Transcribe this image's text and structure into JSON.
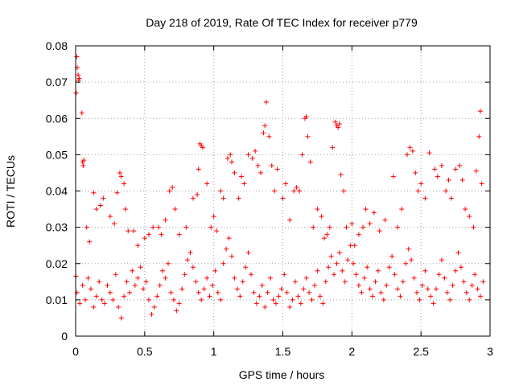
{
  "chart_data": {
    "type": "scatter",
    "title": "Day 218 of 2019, Rate Of TEC Index for receiver p779",
    "xlabel": "GPS time / hours",
    "ylabel": "ROTI / TECUs",
    "xlim": [
      0,
      3
    ],
    "ylim": [
      0,
      0.08
    ],
    "xticks": [
      0,
      0.5,
      1,
      1.5,
      2,
      2.5,
      3
    ],
    "xtick_labels": [
      "0",
      "0.5",
      "1",
      "1.5",
      "2",
      "2.5",
      "3"
    ],
    "yticks": [
      0,
      0.01,
      0.02,
      0.03,
      0.04,
      0.05,
      0.06,
      0.07,
      0.08
    ],
    "ytick_labels": [
      "0",
      "0.01",
      "0.02",
      "0.03",
      "0.04",
      "0.05",
      "0.06",
      "0.07",
      "0.08"
    ],
    "grid": true,
    "marker": "+",
    "color": "#ff0000",
    "series": [
      {
        "name": "p779",
        "points": [
          [
            0.002,
            0.0165
          ],
          [
            0.004,
            0.067
          ],
          [
            0.008,
            0.077
          ],
          [
            0.012,
            0.074
          ],
          [
            0.018,
            0.072
          ],
          [
            0.022,
            0.0705
          ],
          [
            0.026,
            0.071
          ],
          [
            0.045,
            0.0615
          ],
          [
            0.05,
            0.048
          ],
          [
            0.055,
            0.047
          ],
          [
            0.06,
            0.0485
          ],
          [
            0.08,
            0.03
          ],
          [
            0.1,
            0.026
          ],
          [
            0.13,
            0.0395
          ],
          [
            0.15,
            0.035
          ],
          [
            0.18,
            0.036
          ],
          [
            0.2,
            0.038
          ],
          [
            0.25,
            0.033
          ],
          [
            0.28,
            0.031
          ],
          [
            0.3,
            0.0395
          ],
          [
            0.32,
            0.045
          ],
          [
            0.33,
            0.044
          ],
          [
            0.35,
            0.042
          ],
          [
            0.36,
            0.035
          ],
          [
            0.38,
            0.029
          ],
          [
            0.42,
            0.029
          ],
          [
            0.45,
            0.025
          ],
          [
            0.5,
            0.027
          ],
          [
            0.53,
            0.028
          ],
          [
            0.56,
            0.03
          ],
          [
            0.6,
            0.03
          ],
          [
            0.62,
            0.028
          ],
          [
            0.65,
            0.032
          ],
          [
            0.68,
            0.04
          ],
          [
            0.7,
            0.041
          ],
          [
            0.72,
            0.035
          ],
          [
            0.75,
            0.028
          ],
          [
            0.8,
            0.03
          ],
          [
            0.85,
            0.038
          ],
          [
            0.88,
            0.039
          ],
          [
            0.89,
            0.046
          ],
          [
            0.9,
            0.053
          ],
          [
            0.91,
            0.0525
          ],
          [
            0.92,
            0.052
          ],
          [
            0.95,
            0.042
          ],
          [
            0.98,
            0.03
          ],
          [
            1.0,
            0.033
          ],
          [
            1.02,
            0.029
          ],
          [
            1.05,
            0.04
          ],
          [
            1.07,
            0.038
          ],
          [
            1.1,
            0.049
          ],
          [
            1.12,
            0.05
          ],
          [
            1.13,
            0.048
          ],
          [
            1.15,
            0.045
          ],
          [
            1.18,
            0.038
          ],
          [
            1.2,
            0.044
          ],
          [
            1.22,
            0.042
          ],
          [
            1.25,
            0.05
          ],
          [
            1.28,
            0.049
          ],
          [
            1.3,
            0.051
          ],
          [
            1.32,
            0.047
          ],
          [
            1.34,
            0.045
          ],
          [
            1.36,
            0.056
          ],
          [
            1.37,
            0.058
          ],
          [
            1.38,
            0.0645
          ],
          [
            1.4,
            0.055
          ],
          [
            1.42,
            0.047
          ],
          [
            1.44,
            0.04
          ],
          [
            1.46,
            0.046
          ],
          [
            1.5,
            0.038
          ],
          [
            1.52,
            0.042
          ],
          [
            1.55,
            0.032
          ],
          [
            1.58,
            0.04
          ],
          [
            1.6,
            0.041
          ],
          [
            1.62,
            0.04
          ],
          [
            1.64,
            0.05
          ],
          [
            1.66,
            0.06
          ],
          [
            1.67,
            0.0605
          ],
          [
            1.68,
            0.055
          ],
          [
            1.7,
            0.048
          ],
          [
            1.72,
            0.03
          ],
          [
            1.75,
            0.035
          ],
          [
            1.78,
            0.033
          ],
          [
            1.8,
            0.027
          ],
          [
            1.82,
            0.028
          ],
          [
            1.84,
            0.03
          ],
          [
            1.86,
            0.052
          ],
          [
            1.88,
            0.059
          ],
          [
            1.89,
            0.058
          ],
          [
            1.9,
            0.0575
          ],
          [
            1.91,
            0.0585
          ],
          [
            1.92,
            0.0445
          ],
          [
            1.94,
            0.04
          ],
          [
            1.96,
            0.03
          ],
          [
            2.0,
            0.031
          ],
          [
            2.02,
            0.025
          ],
          [
            2.05,
            0.028
          ],
          [
            2.08,
            0.03
          ],
          [
            2.1,
            0.035
          ],
          [
            2.13,
            0.031
          ],
          [
            2.16,
            0.034
          ],
          [
            2.2,
            0.029
          ],
          [
            2.24,
            0.032
          ],
          [
            2.3,
            0.044
          ],
          [
            2.33,
            0.03
          ],
          [
            2.36,
            0.035
          ],
          [
            2.4,
            0.05
          ],
          [
            2.42,
            0.052
          ],
          [
            2.44,
            0.051
          ],
          [
            2.46,
            0.045
          ],
          [
            2.48,
            0.04
          ],
          [
            2.5,
            0.042
          ],
          [
            2.53,
            0.038
          ],
          [
            2.56,
            0.0505
          ],
          [
            2.6,
            0.046
          ],
          [
            2.62,
            0.044
          ],
          [
            2.65,
            0.047
          ],
          [
            2.68,
            0.04
          ],
          [
            2.7,
            0.043
          ],
          [
            2.72,
            0.038
          ],
          [
            2.75,
            0.046
          ],
          [
            2.78,
            0.047
          ],
          [
            2.8,
            0.043
          ],
          [
            2.82,
            0.035
          ],
          [
            2.85,
            0.033
          ],
          [
            2.88,
            0.03
          ],
          [
            2.9,
            0.0455
          ],
          [
            2.92,
            0.055
          ],
          [
            2.93,
            0.062
          ],
          [
            2.94,
            0.042
          ]
        ],
        "band_points": [
          [
            0.01,
            0.012
          ],
          [
            0.03,
            0.009
          ],
          [
            0.05,
            0.014
          ],
          [
            0.07,
            0.01
          ],
          [
            0.09,
            0.016
          ],
          [
            0.11,
            0.013
          ],
          [
            0.13,
            0.008
          ],
          [
            0.15,
            0.011
          ],
          [
            0.17,
            0.015
          ],
          [
            0.19,
            0.01
          ],
          [
            0.21,
            0.009
          ],
          [
            0.23,
            0.014
          ],
          [
            0.25,
            0.012
          ],
          [
            0.27,
            0.01
          ],
          [
            0.29,
            0.017
          ],
          [
            0.31,
            0.008
          ],
          [
            0.33,
            0.005
          ],
          [
            0.35,
            0.011
          ],
          [
            0.37,
            0.015
          ],
          [
            0.39,
            0.012
          ],
          [
            0.41,
            0.018
          ],
          [
            0.43,
            0.014
          ],
          [
            0.45,
            0.016
          ],
          [
            0.47,
            0.019
          ],
          [
            0.49,
            0.013
          ],
          [
            0.51,
            0.015
          ],
          [
            0.53,
            0.01
          ],
          [
            0.55,
            0.006
          ],
          [
            0.57,
            0.008
          ],
          [
            0.59,
            0.011
          ],
          [
            0.61,
            0.014
          ],
          [
            0.63,
            0.018
          ],
          [
            0.65,
            0.016
          ],
          [
            0.67,
            0.02
          ],
          [
            0.69,
            0.012
          ],
          [
            0.71,
            0.01
          ],
          [
            0.73,
            0.007
          ],
          [
            0.75,
            0.009
          ],
          [
            0.77,
            0.013
          ],
          [
            0.79,
            0.017
          ],
          [
            0.81,
            0.021
          ],
          [
            0.83,
            0.023
          ],
          [
            0.85,
            0.019
          ],
          [
            0.87,
            0.015
          ],
          [
            0.89,
            0.012
          ],
          [
            0.91,
            0.01
          ],
          [
            0.93,
            0.013
          ],
          [
            0.95,
            0.016
          ],
          [
            0.97,
            0.011
          ],
          [
            0.99,
            0.014
          ],
          [
            1.01,
            0.018
          ],
          [
            1.03,
            0.012
          ],
          [
            1.05,
            0.01
          ],
          [
            1.07,
            0.02
          ],
          [
            1.09,
            0.024
          ],
          [
            1.11,
            0.027
          ],
          [
            1.13,
            0.022
          ],
          [
            1.15,
            0.016
          ],
          [
            1.17,
            0.013
          ],
          [
            1.19,
            0.011
          ],
          [
            1.21,
            0.015
          ],
          [
            1.23,
            0.019
          ],
          [
            1.25,
            0.023
          ],
          [
            1.27,
            0.017
          ],
          [
            1.29,
            0.012
          ],
          [
            1.31,
            0.009
          ],
          [
            1.33,
            0.011
          ],
          [
            1.35,
            0.014
          ],
          [
            1.37,
            0.008
          ],
          [
            1.39,
            0.012
          ],
          [
            1.41,
            0.016
          ],
          [
            1.43,
            0.01
          ],
          [
            1.45,
            0.009
          ],
          [
            1.47,
            0.011
          ],
          [
            1.49,
            0.013
          ],
          [
            1.51,
            0.017
          ],
          [
            1.53,
            0.012
          ],
          [
            1.55,
            0.008
          ],
          [
            1.57,
            0.01
          ],
          [
            1.59,
            0.015
          ],
          [
            1.61,
            0.011
          ],
          [
            1.63,
            0.009
          ],
          [
            1.65,
            0.013
          ],
          [
            1.67,
            0.016
          ],
          [
            1.69,
            0.012
          ],
          [
            1.71,
            0.01
          ],
          [
            1.73,
            0.014
          ],
          [
            1.75,
            0.018
          ],
          [
            1.77,
            0.011
          ],
          [
            1.79,
            0.009
          ],
          [
            1.81,
            0.015
          ],
          [
            1.83,
            0.019
          ],
          [
            1.85,
            0.022
          ],
          [
            1.87,
            0.017
          ],
          [
            1.89,
            0.02
          ],
          [
            1.91,
            0.023
          ],
          [
            1.93,
            0.018
          ],
          [
            1.95,
            0.015
          ],
          [
            1.97,
            0.021
          ],
          [
            1.99,
            0.025
          ],
          [
            2.01,
            0.02
          ],
          [
            2.03,
            0.017
          ],
          [
            2.05,
            0.014
          ],
          [
            2.07,
            0.012
          ],
          [
            2.09,
            0.016
          ],
          [
            2.11,
            0.019
          ],
          [
            2.13,
            0.013
          ],
          [
            2.15,
            0.011
          ],
          [
            2.17,
            0.015
          ],
          [
            2.19,
            0.018
          ],
          [
            2.21,
            0.012
          ],
          [
            2.23,
            0.01
          ],
          [
            2.25,
            0.014
          ],
          [
            2.27,
            0.019
          ],
          [
            2.29,
            0.022
          ],
          [
            2.31,
            0.017
          ],
          [
            2.33,
            0.013
          ],
          [
            2.35,
            0.011
          ],
          [
            2.37,
            0.015
          ],
          [
            2.39,
            0.02
          ],
          [
            2.41,
            0.024
          ],
          [
            2.43,
            0.021
          ],
          [
            2.45,
            0.016
          ],
          [
            2.47,
            0.012
          ],
          [
            2.49,
            0.01
          ],
          [
            2.51,
            0.014
          ],
          [
            2.53,
            0.018
          ],
          [
            2.55,
            0.013
          ],
          [
            2.57,
            0.011
          ],
          [
            2.59,
            0.009
          ],
          [
            2.61,
            0.013
          ],
          [
            2.63,
            0.017
          ],
          [
            2.65,
            0.021
          ],
          [
            2.67,
            0.016
          ],
          [
            2.69,
            0.012
          ],
          [
            2.71,
            0.01
          ],
          [
            2.73,
            0.014
          ],
          [
            2.75,
            0.018
          ],
          [
            2.77,
            0.023
          ],
          [
            2.79,
            0.019
          ],
          [
            2.81,
            0.015
          ],
          [
            2.83,
            0.012
          ],
          [
            2.85,
            0.01
          ],
          [
            2.87,
            0.014
          ],
          [
            2.89,
            0.017
          ],
          [
            2.91,
            0.013
          ],
          [
            2.93,
            0.011
          ],
          [
            2.95,
            0.015
          ]
        ]
      }
    ]
  }
}
